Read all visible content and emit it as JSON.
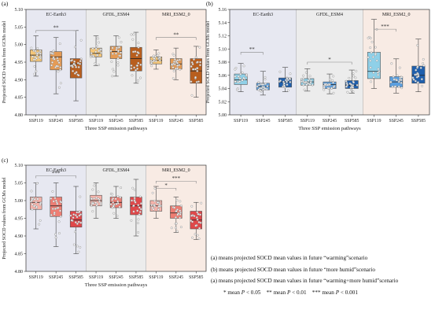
{
  "colors": {
    "shade": [
      "#e7e8f1",
      "#ececec",
      "#f8ebe4"
    ],
    "dot": "#ffffff",
    "dot_stroke": "#888888",
    "bracket": "#888888",
    "axis": "#333333"
  },
  "chart_data": [
    {
      "type": "box",
      "panel_label": "(a)",
      "ylabel": "Projected SOCD values from GCMs model",
      "xlabel": "Three SSP emission pathways",
      "ylim": [
        4.8,
        5.1
      ],
      "yticks": [
        "4.80",
        "4.85",
        "4.90",
        "4.95",
        "5.00",
        "5.05",
        "5.10"
      ],
      "grid": false,
      "group_labels": [
        "EC-Earth3",
        "GFDL_ESM4",
        "MRI_ESM2_0"
      ],
      "categories": [
        "SSP119",
        "SSP245",
        "SSP585",
        "SSP119",
        "SSP245",
        "SSP585",
        "SSP119",
        "SSP245",
        "SSP585"
      ],
      "box_colors": [
        "#f5c678",
        "#e59b55",
        "#b85e1e",
        "#f5c678",
        "#e59b55",
        "#b85e1e",
        "#f5c678",
        "#e59b55",
        "#b85e1e"
      ],
      "boxes": [
        {
          "min": 4.91,
          "q1": 4.952,
          "median": 4.97,
          "q3": 4.985,
          "max": 5.025
        },
        {
          "min": 4.86,
          "q1": 4.928,
          "median": 4.965,
          "q3": 4.98,
          "max": 5.02
        },
        {
          "min": 4.84,
          "q1": 4.905,
          "median": 4.945,
          "q3": 4.96,
          "max": 5.04
        },
        {
          "min": 4.94,
          "q1": 4.965,
          "median": 4.975,
          "q3": 4.99,
          "max": 5.025
        },
        {
          "min": 4.91,
          "q1": 4.96,
          "median": 4.98,
          "q3": 4.995,
          "max": 5.025
        },
        {
          "min": 4.89,
          "q1": 4.925,
          "median": 4.96,
          "q3": 4.992,
          "max": 5.035
        },
        {
          "min": 4.93,
          "q1": 4.945,
          "median": 4.955,
          "q3": 4.965,
          "max": 4.985
        },
        {
          "min": 4.9,
          "q1": 4.93,
          "median": 4.945,
          "q3": 4.96,
          "max": 4.99
        },
        {
          "min": 4.85,
          "q1": 4.89,
          "median": 4.925,
          "q3": 4.96,
          "max": 4.995
        }
      ],
      "brackets": [
        {
          "from": 0,
          "to": 2,
          "y": 5.04,
          "label": "**"
        },
        {
          "from": 6,
          "to": 8,
          "y": 5.02,
          "label": "**"
        }
      ]
    },
    {
      "type": "box",
      "panel_label": "(b)",
      "ylabel": "Projected SOCD values from GCMs model",
      "xlabel": "Three SSP emission pathways",
      "ylim": [
        5.0,
        5.16
      ],
      "yticks": [
        "5.00",
        "5.02",
        "5.04",
        "5.06",
        "5.08",
        "5.10",
        "5.12",
        "5.14",
        "5.16"
      ],
      "grid": false,
      "group_labels": [
        "EC-Earth3",
        "GFDL_ESM4",
        "MRI_ESM2_0"
      ],
      "categories": [
        "SSP119",
        "SSP245",
        "SSP585",
        "SSP119",
        "SSP245",
        "SSP585",
        "SSP119",
        "SSP245",
        "SSP585"
      ],
      "box_colors": [
        "#8fd0e8",
        "#5a9fe0",
        "#1f5fad",
        "#8fd0e8",
        "#5a9fe0",
        "#1f5fad",
        "#8fd0e8",
        "#5a9fe0",
        "#1f5fad"
      ],
      "boxes": [
        {
          "min": 5.035,
          "q1": 5.046,
          "median": 5.053,
          "q3": 5.062,
          "max": 5.078
        },
        {
          "min": 5.03,
          "q1": 5.038,
          "median": 5.043,
          "q3": 5.048,
          "max": 5.066
        },
        {
          "min": 5.035,
          "q1": 5.042,
          "median": 5.05,
          "q3": 5.056,
          "max": 5.072
        },
        {
          "min": 5.036,
          "q1": 5.045,
          "median": 5.05,
          "q3": 5.055,
          "max": 5.07
        },
        {
          "min": 5.032,
          "q1": 5.04,
          "median": 5.046,
          "q3": 5.05,
          "max": 5.062
        },
        {
          "min": 5.033,
          "q1": 5.04,
          "median": 5.045,
          "q3": 5.052,
          "max": 5.068
        },
        {
          "min": 5.04,
          "q1": 5.055,
          "median": 5.066,
          "q3": 5.095,
          "max": 5.145
        },
        {
          "min": 5.033,
          "q1": 5.042,
          "median": 5.05,
          "q3": 5.058,
          "max": 5.085
        },
        {
          "min": 5.035,
          "q1": 5.048,
          "median": 5.06,
          "q3": 5.074,
          "max": 5.115
        }
      ],
      "brackets": [
        {
          "from": 0,
          "to": 1,
          "y": 5.095,
          "label": "**"
        },
        {
          "from": 3,
          "to": 5,
          "y": 5.08,
          "label": "*"
        },
        {
          "from": 6,
          "to": 7,
          "y": 5.13,
          "label": "***"
        }
      ]
    },
    {
      "type": "box",
      "panel_label": "(c)",
      "ylabel": "Projected SOCD values from GCMs model",
      "xlabel": "Three SSP emission pathways",
      "ylim": [
        4.8,
        5.1
      ],
      "yticks": [
        "4.80",
        "4.85",
        "4.90",
        "4.95",
        "5.00",
        "5.05",
        "5.10"
      ],
      "grid": false,
      "group_labels": [
        "EC-Earth3",
        "GFDL_ESM4",
        "MRI_ESM2_0"
      ],
      "categories": [
        "SSP119",
        "SSP245",
        "SSP585",
        "SSP119",
        "SSP245",
        "SSP585",
        "SSP119",
        "SSP245",
        "SSP585"
      ],
      "box_colors": [
        "#f7b3aa",
        "#ee7d73",
        "#e0484a",
        "#f7b3aa",
        "#ee7d73",
        "#e0484a",
        "#f7b3aa",
        "#ee7d73",
        "#e0484a"
      ],
      "boxes": [
        {
          "min": 4.92,
          "q1": 4.975,
          "median": 4.995,
          "q3": 5.01,
          "max": 5.05
        },
        {
          "min": 4.87,
          "q1": 4.955,
          "median": 4.985,
          "q3": 5.01,
          "max": 5.05
        },
        {
          "min": 4.85,
          "q1": 4.925,
          "median": 4.945,
          "q3": 4.97,
          "max": 5.04
        },
        {
          "min": 4.95,
          "q1": 4.985,
          "median": 5.0,
          "q3": 5.015,
          "max": 5.05
        },
        {
          "min": 4.95,
          "q1": 4.98,
          "median": 4.995,
          "q3": 5.01,
          "max": 5.04
        },
        {
          "min": 4.9,
          "q1": 4.96,
          "median": 4.985,
          "q3": 5.01,
          "max": 5.06
        },
        {
          "min": 4.95,
          "q1": 4.97,
          "median": 4.985,
          "q3": 5.0,
          "max": 5.04
        },
        {
          "min": 4.91,
          "q1": 4.95,
          "median": 4.965,
          "q3": 4.985,
          "max": 5.01
        },
        {
          "min": 4.89,
          "q1": 4.92,
          "median": 4.945,
          "q3": 4.97,
          "max": 4.995
        }
      ],
      "brackets": [
        {
          "from": 0,
          "to": 2,
          "y": 5.07,
          "label": "***"
        },
        {
          "from": 6,
          "to": 7,
          "y": 5.035,
          "label": "*"
        },
        {
          "from": 6,
          "to": 8,
          "y": 5.055,
          "label": "***"
        }
      ]
    }
  ],
  "notes": {
    "lines": [
      "(a) means projected SOCD mean values in future “warming”scenario",
      "(b) means projected SOCD mean values in future “more humid”scenario",
      "(a) means projected SOCD mean values in future “warming+more humid”scenario"
    ],
    "sig_1": "* mean ",
    "sig_1_p": "P",
    "sig_1_val": " < 0.05",
    "sig_2": "** mean ",
    "sig_2_p": "P",
    "sig_2_val": " < 0.01",
    "sig_3": "*** mean ",
    "sig_3_p": "P",
    "sig_3_val": " < 0.001"
  }
}
